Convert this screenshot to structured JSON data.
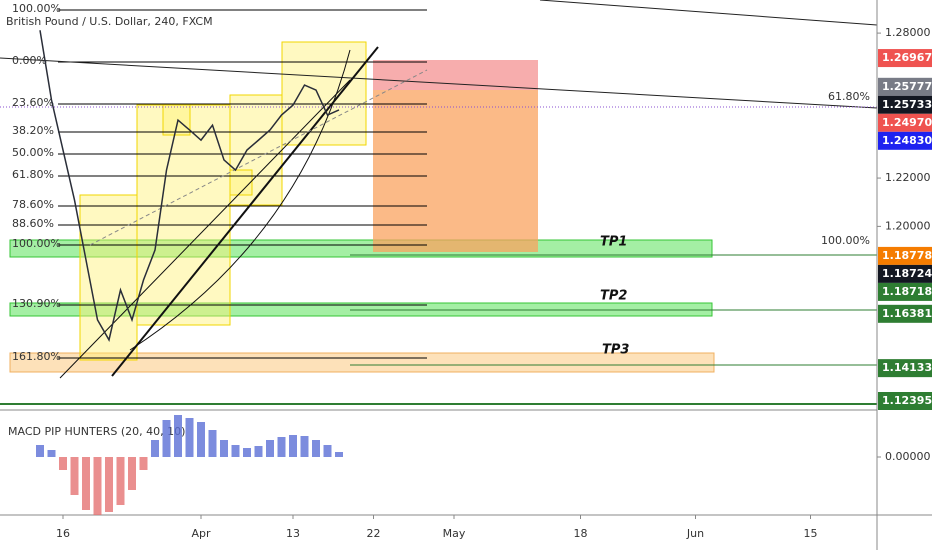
{
  "chart_data": [
    {
      "type": "line",
      "title": "British Pound / U.S. Dollar, 240, FXCM",
      "categories": [
        null,
        null,
        "16",
        null,
        null,
        null,
        null,
        null,
        null,
        null,
        null,
        null,
        null,
        null,
        "Apr",
        null,
        null,
        null,
        null,
        null,
        null,
        null,
        "13",
        null,
        null,
        null,
        null,
        null,
        null,
        "22",
        null,
        null,
        null,
        null,
        null,
        null,
        "May",
        null,
        null,
        null,
        null,
        null,
        null,
        null,
        null,
        null,
        null,
        "18",
        null,
        null,
        null,
        null,
        null,
        null,
        null,
        null,
        null,
        "Jun",
        null,
        null,
        null,
        null,
        null,
        null,
        null,
        null,
        null,
        "15",
        null,
        null
      ],
      "values": [
        1.2812,
        1.2523,
        1.2316,
        1.2109,
        1.1861,
        1.1613,
        1.153,
        1.1737,
        1.1613,
        1.1778,
        1.1902,
        1.2233,
        1.244,
        1.2399,
        1.2357,
        1.2419,
        1.2275,
        1.2233,
        1.2316,
        1.2357,
        1.2399,
        1.2461,
        1.2502,
        1.2585,
        1.2564,
        1.2461,
        1.2482,
        null,
        null,
        null,
        null,
        null,
        null,
        null,
        null,
        null,
        null,
        null,
        null,
        null,
        null,
        null,
        null,
        null,
        null,
        null,
        null,
        null,
        null,
        null,
        null,
        null,
        null,
        null,
        null,
        null,
        null,
        null,
        null,
        null,
        null,
        null,
        null,
        null,
        null,
        null,
        null,
        null,
        null,
        null
      ],
      "color": "#2a2e39",
      "ylim": [
        1.124,
        1.2937
      ],
      "yticks": [
        {
          "value": 1.28,
          "label": "1.28000"
        },
        {
          "value": 1.22,
          "label": "1.22000"
        },
        {
          "value": 1.2,
          "label": "1.20000"
        }
      ],
      "price_tags": [
        {
          "value": 1.26967,
          "label": "1.26967",
          "color": "#ef5350"
        },
        {
          "value": 1.25777,
          "label": "1.25777",
          "color": "#787b86"
        },
        {
          "value": 1.25733,
          "label": "1.25733",
          "color": "#131722"
        },
        {
          "value": 1.2497,
          "label": "1.24970",
          "color": "#ef5350"
        },
        {
          "value": 1.2483,
          "label": "1.24830",
          "color": "#1e22f0"
        },
        {
          "value": 1.18778,
          "label": "1.18778",
          "color": "#f57c00"
        },
        {
          "value": 1.18724,
          "label": "1.18724",
          "color": "#131722"
        },
        {
          "value": 1.18718,
          "label": "1.18718",
          "color": "#2e7d32"
        },
        {
          "value": 1.16381,
          "label": "1.16381",
          "color": "#2e7d32"
        },
        {
          "value": 1.14133,
          "label": "1.14133",
          "color": "#2e7d32"
        },
        {
          "value": 1.12395,
          "label": "1.12395",
          "color": "#2e7d32"
        }
      ],
      "fib_levels": [
        "100.00%",
        "0.00%",
        "23.60%",
        "38.20%",
        "50.00%",
        "61.80%",
        "78.60%",
        "88.60%",
        "100.00%",
        "130.90%",
        "161.80%"
      ],
      "annotations": [
        "61.80%",
        "100.00%",
        "TP1",
        "TP2",
        "TP3"
      ]
    },
    {
      "type": "bar",
      "title": "MACD PIP HUNTERS (20, 40, 10)",
      "categories": [
        null,
        null,
        "16",
        null,
        null,
        null,
        null,
        null,
        null,
        null,
        null,
        null,
        null,
        null,
        "Apr",
        null,
        null,
        null,
        null,
        null,
        null,
        null,
        "13",
        null,
        null,
        null,
        null,
        null,
        null,
        "22",
        null,
        null,
        null,
        null,
        null,
        null,
        "May",
        null,
        null,
        null,
        null,
        null,
        null,
        null,
        null,
        null,
        null,
        "18",
        null,
        null,
        null,
        null,
        null,
        null,
        null,
        null,
        null,
        "Jun",
        null,
        null,
        null,
        null,
        null,
        null,
        null,
        null,
        null,
        "15",
        null,
        null
      ],
      "values": [
        0.0006,
        0.00035,
        -0.00065,
        -0.0019,
        -0.00265,
        -0.0029,
        -0.00275,
        -0.0024,
        -0.00165,
        -0.00065,
        0.00085,
        0.00185,
        0.0021,
        0.00195,
        0.00175,
        0.00135,
        0.00085,
        0.0006,
        0.00045,
        0.00055,
        0.00085,
        0.001,
        0.0011,
        0.00105,
        0.00085,
        0.0006,
        0.00025,
        null,
        null,
        null,
        null,
        null,
        null,
        null,
        null,
        null,
        null,
        null,
        null,
        null,
        null,
        null,
        null,
        null,
        null,
        null,
        null,
        null,
        null,
        null,
        null,
        null,
        null,
        null,
        null,
        null,
        null,
        null,
        null,
        null,
        null,
        null,
        null,
        null,
        null,
        null,
        null,
        null,
        null,
        null
      ],
      "colors": {
        "positive": "#5b6fd6",
        "negative": "#e57373"
      },
      "ylim": [
        -0.00315,
        0.0026
      ],
      "yticks": [
        {
          "value": 0,
          "label": "0.00000"
        }
      ]
    }
  ]
}
